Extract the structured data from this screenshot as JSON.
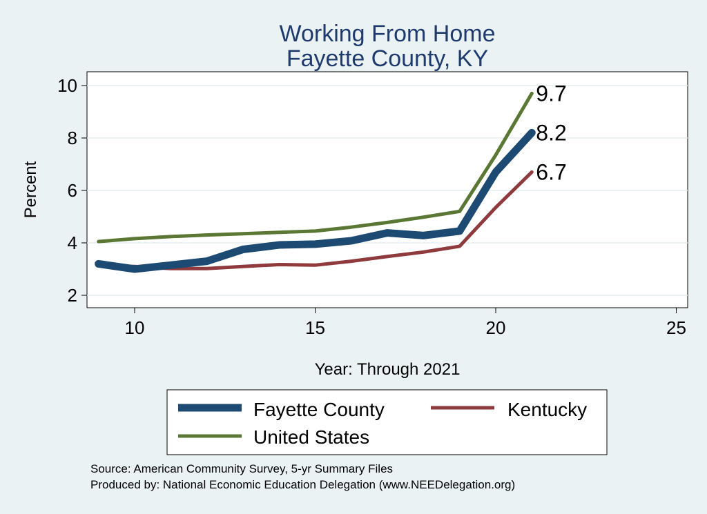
{
  "chart_data": {
    "type": "line",
    "title": [
      "Working From Home",
      "Fayette County, KY"
    ],
    "xlabel": "Year: Through 2021",
    "ylabel": "Percent",
    "xlim": [
      9,
      25
    ],
    "ylim": [
      2,
      10
    ],
    "xticks": [
      10,
      15,
      20,
      25
    ],
    "yticks": [
      2,
      4,
      6,
      8,
      10
    ],
    "grid": "horizontal",
    "x": [
      9,
      10,
      11,
      12,
      13,
      14,
      15,
      16,
      17,
      18,
      19,
      20,
      21
    ],
    "series": [
      {
        "name": "Fayette County",
        "color": "#1c4a72",
        "values": [
          3.2,
          3.0,
          3.15,
          3.3,
          3.75,
          3.92,
          3.95,
          4.08,
          4.38,
          4.28,
          4.45,
          6.7,
          8.2
        ],
        "end_label": "8.2"
      },
      {
        "name": "Kentucky",
        "color": "#8f3a3d",
        "values": [
          3.12,
          3.1,
          3.02,
          3.02,
          3.1,
          3.17,
          3.15,
          3.3,
          3.48,
          3.65,
          3.87,
          5.35,
          6.7
        ],
        "end_label": "6.7"
      },
      {
        "name": "United States",
        "color": "#5a7733",
        "values": [
          4.05,
          4.16,
          4.24,
          4.3,
          4.35,
          4.4,
          4.45,
          4.6,
          4.78,
          4.98,
          5.2,
          7.35,
          9.7
        ],
        "end_label": "9.7"
      }
    ],
    "legend": {
      "placement": "bottom",
      "entries": [
        "Fayette County",
        "Kentucky",
        "United States"
      ]
    },
    "notes": [
      "Source: American Community Survey, 5-yr Summary Files",
      "Produced by: National Economic Education Delegation (www.NEEDelegation.org)"
    ]
  }
}
